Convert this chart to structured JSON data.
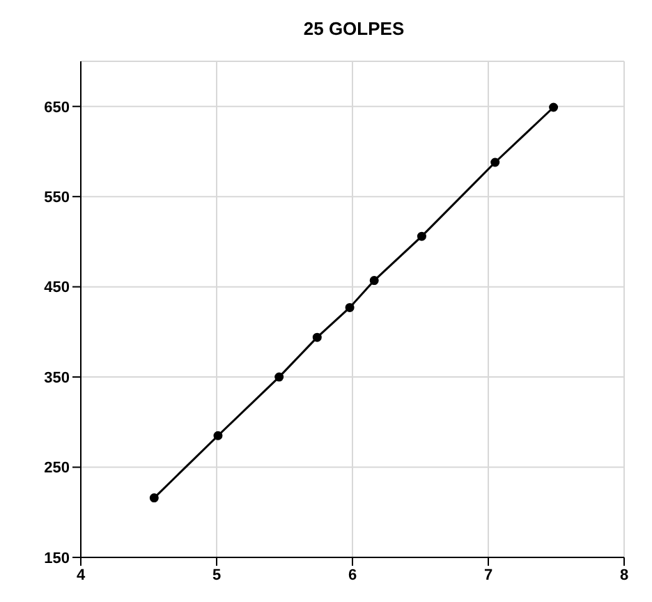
{
  "chart_data": {
    "type": "line",
    "title": "25 GOLPES",
    "x": [
      4.54,
      5.01,
      5.46,
      5.74,
      5.98,
      6.16,
      6.51,
      7.05,
      7.48
    ],
    "series": [
      {
        "color": "#000000",
        "values": [
          216,
          285,
          350,
          394,
          427,
          457,
          506,
          588,
          649
        ]
      }
    ],
    "xlim": [
      4,
      8
    ],
    "xticks": [
      4,
      5,
      6,
      7,
      8
    ],
    "ylim": [
      150,
      700
    ],
    "yticks": [
      150,
      250,
      350,
      450,
      550,
      650
    ],
    "grid": true,
    "marker": "circle",
    "line_style": "solid"
  }
}
